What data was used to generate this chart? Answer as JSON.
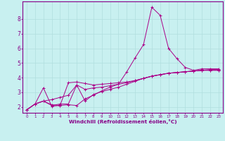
{
  "xlabel": "Windchill (Refroidissement éolien,°C)",
  "bg_color": "#c8f0f0",
  "line_color": "#aa0088",
  "grid_color": "#b0dede",
  "axis_color": "#880088",
  "text_color": "#880088",
  "xlim": [
    -0.5,
    23.5
  ],
  "ylim": [
    1.6,
    9.2
  ],
  "xticks": [
    0,
    1,
    2,
    3,
    4,
    5,
    6,
    7,
    8,
    9,
    10,
    11,
    12,
    13,
    14,
    15,
    16,
    17,
    18,
    19,
    20,
    21,
    22,
    23
  ],
  "yticks": [
    2,
    3,
    4,
    5,
    6,
    7,
    8
  ],
  "series": [
    {
      "x": [
        0,
        1,
        2,
        3,
        4,
        5,
        6,
        7,
        8,
        9,
        10,
        11,
        12,
        13,
        14,
        15,
        16,
        17,
        18,
        19,
        20,
        21,
        22,
        23
      ],
      "y": [
        1.8,
        2.2,
        2.4,
        2.15,
        2.1,
        2.15,
        2.1,
        2.55,
        2.8,
        3.1,
        3.35,
        3.55,
        4.4,
        5.35,
        6.25,
        8.8,
        8.25,
        6.0,
        5.3,
        4.7,
        4.5,
        4.6,
        4.6,
        4.6
      ]
    },
    {
      "x": [
        0,
        1,
        2,
        3,
        4,
        5,
        6,
        7,
        8,
        9,
        10,
        11,
        12,
        13,
        14,
        15,
        16,
        17,
        18,
        19,
        20,
        21,
        22,
        23
      ],
      "y": [
        1.8,
        2.2,
        3.3,
        2.05,
        2.1,
        3.65,
        3.7,
        3.6,
        3.5,
        3.55,
        3.6,
        3.65,
        3.7,
        3.8,
        3.95,
        4.1,
        4.2,
        4.3,
        4.35,
        4.4,
        4.45,
        4.5,
        4.55,
        4.55
      ]
    },
    {
      "x": [
        0,
        1,
        2,
        3,
        4,
        5,
        6,
        7,
        8,
        9,
        10,
        11,
        12,
        13,
        14,
        15,
        16,
        17,
        18,
        19,
        20,
        21,
        22,
        23
      ],
      "y": [
        1.8,
        2.2,
        2.4,
        2.5,
        2.65,
        2.8,
        3.5,
        3.2,
        3.3,
        3.35,
        3.45,
        3.55,
        3.65,
        3.8,
        3.95,
        4.1,
        4.2,
        4.3,
        4.35,
        4.4,
        4.45,
        4.5,
        4.5,
        4.5
      ]
    },
    {
      "x": [
        0,
        1,
        2,
        3,
        4,
        5,
        6,
        7,
        8,
        9,
        10,
        11,
        12,
        13,
        14,
        15,
        16,
        17,
        18,
        19,
        20,
        21,
        22,
        23
      ],
      "y": [
        1.8,
        2.2,
        2.4,
        2.1,
        2.2,
        2.2,
        3.5,
        2.4,
        2.85,
        3.05,
        3.2,
        3.35,
        3.55,
        3.75,
        3.95,
        4.1,
        4.2,
        4.3,
        4.35,
        4.4,
        4.45,
        4.5,
        4.5,
        4.5
      ]
    }
  ]
}
